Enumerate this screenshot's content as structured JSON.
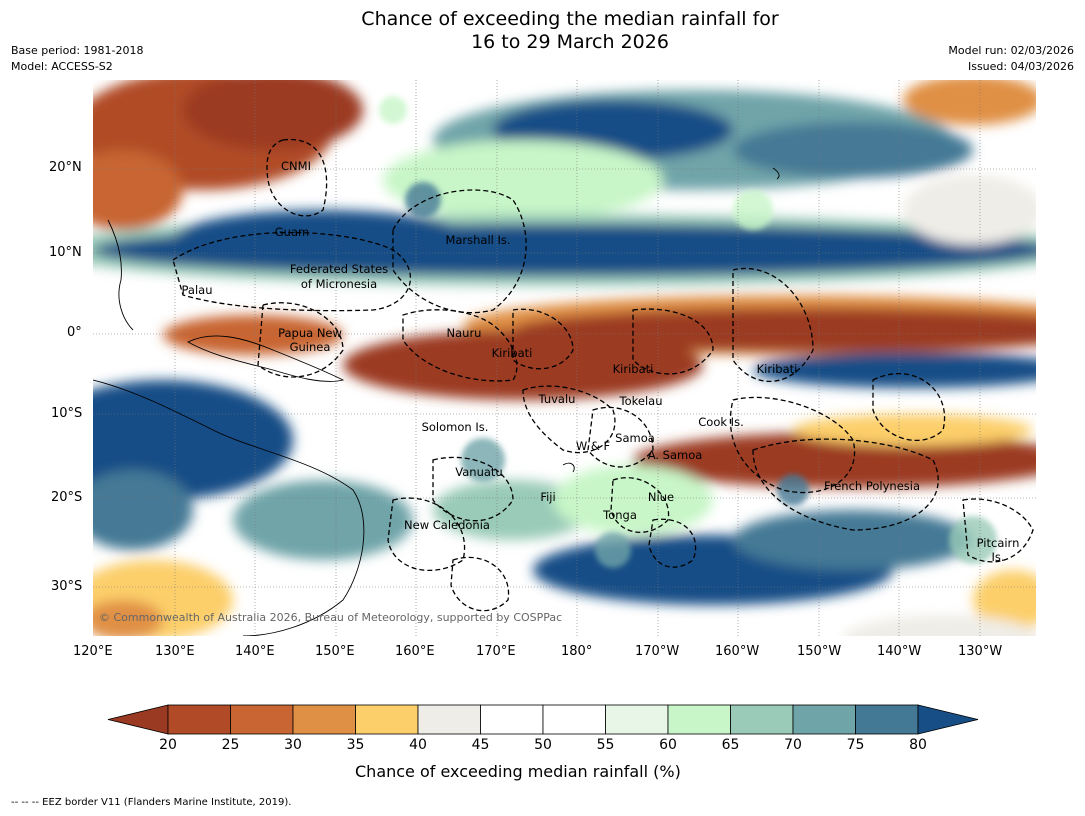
{
  "header": {
    "title_line1": "Chance of exceeding the median rainfall for",
    "title_line2": "16 to 29 March 2026",
    "base_period": "Base period: 1981-2018",
    "model": "Model: ACCESS-S2",
    "model_run": "Model run: 02/03/2026",
    "issued": "Issued: 04/03/2026"
  },
  "map": {
    "copyright": "© Commonwealth of Australia 2026, Bureau of Meteorology, supported by COSPPac",
    "lat_ticks": [
      "20°N",
      "10°N",
      "0°",
      "10°S",
      "20°S",
      "30°S"
    ],
    "lon_ticks": [
      "120°E",
      "130°E",
      "140°E",
      "150°E",
      "160°E",
      "170°E",
      "180°",
      "170°W",
      "160°W",
      "150°W",
      "140°W",
      "130°W"
    ],
    "regions": [
      {
        "id": "cnmi",
        "label": "CNMI"
      },
      {
        "id": "guam",
        "label": "Guam"
      },
      {
        "id": "marshall",
        "label": "Marshall Is."
      },
      {
        "id": "fsm1",
        "label": "Federated States"
      },
      {
        "id": "fsm2",
        "label": "of Micronesia"
      },
      {
        "id": "palau",
        "label": "Palau"
      },
      {
        "id": "png1",
        "label": "Papua New"
      },
      {
        "id": "png2",
        "label": "Guinea"
      },
      {
        "id": "nauru",
        "label": "Nauru"
      },
      {
        "id": "kiribati1",
        "label": "Kiribati"
      },
      {
        "id": "kiribati2",
        "label": "Kiribati"
      },
      {
        "id": "kiribati3",
        "label": "Kiribati"
      },
      {
        "id": "tuvalu",
        "label": "Tuvalu"
      },
      {
        "id": "tokelau",
        "label": "Tokelau"
      },
      {
        "id": "cook",
        "label": "Cook Is."
      },
      {
        "id": "solomon",
        "label": "Solomon Is."
      },
      {
        "id": "wf",
        "label": "W & F"
      },
      {
        "id": "samoa",
        "label": "Samoa"
      },
      {
        "id": "asamoa",
        "label": "A. Samoa"
      },
      {
        "id": "vanuatu",
        "label": "Vanuatu"
      },
      {
        "id": "fiji",
        "label": "Fiji"
      },
      {
        "id": "niue",
        "label": "Niue"
      },
      {
        "id": "tonga",
        "label": "Tonga"
      },
      {
        "id": "frpoly",
        "label": "French Polynesia"
      },
      {
        "id": "newcal",
        "label": "New Caledonia"
      },
      {
        "id": "pitcairn1",
        "label": "Pitcairn"
      },
      {
        "id": "pitcairn2",
        "label": "Is."
      }
    ]
  },
  "colorbar": {
    "title": "Chance of exceeding median rainfall (%)",
    "labels": [
      "20",
      "25",
      "30",
      "35",
      "40",
      "45",
      "50",
      "55",
      "60",
      "65",
      "70",
      "75",
      "80"
    ],
    "colors": [
      "#9b3a22",
      "#b14b27",
      "#c86532",
      "#e09045",
      "#fccf6a",
      "#efede7",
      "#ffffff",
      "#ffffff",
      "#e8f6e7",
      "#c8f6c8",
      "#9acbb8",
      "#6fa4a9",
      "#447995",
      "#184e86"
    ]
  },
  "footer": {
    "eez_note": "--  --  -- EEZ border V11 (Flanders Marine Institute, 2019)."
  }
}
